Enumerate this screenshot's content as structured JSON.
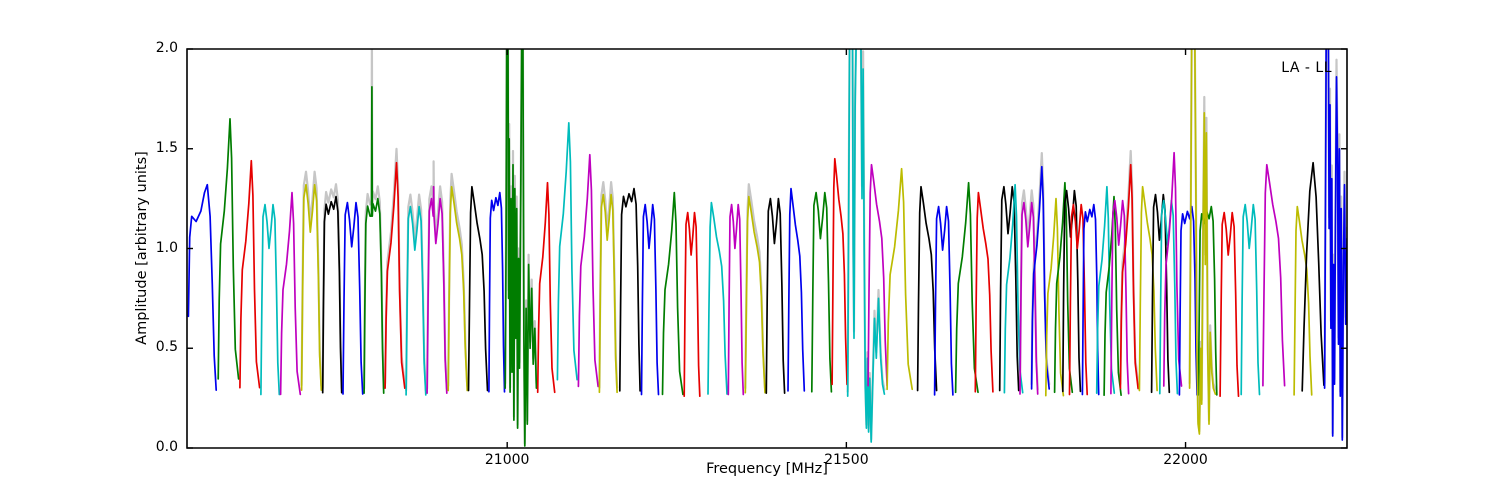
{
  "chart_data": {
    "type": "line",
    "title": "",
    "xlabel": "Frequency [MHz]",
    "ylabel": "Amplitude [arbitrary units]",
    "annotation": "LA - LL",
    "grid": false,
    "legend": "none",
    "xlim": [
      20528,
      22238
    ],
    "ylim": [
      0.0,
      2.0
    ],
    "xticks": [
      "21000",
      "21500",
      "22000"
    ],
    "xtick_values": [
      21000,
      21500,
      22000
    ],
    "yticks": [
      "0.0",
      "0.5",
      "1.0",
      "1.5",
      "2.0"
    ],
    "ytick_values": [
      0.0,
      0.5,
      1.0,
      1.5,
      2.0
    ],
    "colors": {
      "b": "#0000ee",
      "g": "#007d00",
      "r": "#e60000",
      "c": "#00bcbc",
      "m": "#bf00bf",
      "y": "#bcbc00",
      "k": "#000000",
      "gray": "#c6c6c6",
      "axis": "#000000",
      "background": "#ffffff"
    },
    "shapes": {
      "first": [
        [
          0,
          0.5
        ],
        [
          0.05,
          0.8
        ],
        [
          0.12,
          0.88
        ],
        [
          0.28,
          0.86
        ],
        [
          0.45,
          0.9
        ],
        [
          0.58,
          0.97
        ],
        [
          0.68,
          1.0
        ],
        [
          0.78,
          0.88
        ],
        [
          0.86,
          0.62
        ],
        [
          0.93,
          0.35
        ],
        [
          1,
          0.22
        ]
      ],
      "sharp": [
        [
          0,
          0.21
        ],
        [
          0.05,
          0.45
        ],
        [
          0.12,
          0.62
        ],
        [
          0.3,
          0.72
        ],
        [
          0.45,
          0.85
        ],
        [
          0.58,
          1.0
        ],
        [
          0.66,
          0.88
        ],
        [
          0.74,
          0.55
        ],
        [
          0.84,
          0.3
        ],
        [
          1,
          0.21
        ]
      ],
      "flat": [
        [
          0,
          0.22
        ],
        [
          0.04,
          0.55
        ],
        [
          0.09,
          0.9
        ],
        [
          0.18,
          0.97
        ],
        [
          0.3,
          0.93
        ],
        [
          0.45,
          0.98
        ],
        [
          0.58,
          0.95
        ],
        [
          0.7,
          1.0
        ],
        [
          0.8,
          0.94
        ],
        [
          0.88,
          0.7
        ],
        [
          0.94,
          0.4
        ],
        [
          1,
          0.22
        ]
      ],
      "double": [
        [
          0,
          0.22
        ],
        [
          0.05,
          0.6
        ],
        [
          0.11,
          0.95
        ],
        [
          0.22,
          1.0
        ],
        [
          0.33,
          0.93
        ],
        [
          0.44,
          0.82
        ],
        [
          0.55,
          0.9
        ],
        [
          0.66,
          1.0
        ],
        [
          0.76,
          0.94
        ],
        [
          0.85,
          0.65
        ],
        [
          0.92,
          0.35
        ],
        [
          1,
          0.22
        ]
      ],
      "rise": [
        [
          0,
          0.22
        ],
        [
          0.05,
          0.55
        ],
        [
          0.11,
          0.9
        ],
        [
          0.18,
          1.0
        ],
        [
          0.3,
          0.94
        ],
        [
          0.45,
          0.86
        ],
        [
          0.6,
          0.8
        ],
        [
          0.72,
          0.74
        ],
        [
          0.82,
          0.6
        ],
        [
          0.9,
          0.38
        ],
        [
          1,
          0.22
        ]
      ],
      "dome": [
        [
          0,
          0.2
        ],
        [
          0.08,
          0.42
        ],
        [
          0.2,
          0.68
        ],
        [
          0.35,
          0.9
        ],
        [
          0.5,
          1.0
        ],
        [
          0.64,
          0.88
        ],
        [
          0.76,
          0.65
        ],
        [
          0.87,
          0.4
        ],
        [
          1,
          0.22
        ]
      ]
    },
    "segments": [
      {
        "c": "b",
        "f0": 20530,
        "f1": 20571,
        "p": 1.32,
        "s": "first"
      },
      {
        "c": "g",
        "f0": 20574,
        "f1": 20604,
        "p": 1.65,
        "s": "sharp"
      },
      {
        "c": "r",
        "f0": 20606,
        "f1": 20635,
        "p": 1.44,
        "s": "sharp"
      },
      {
        "c": "c",
        "f0": 20637,
        "f1": 20664,
        "p": 1.22,
        "s": "double"
      },
      {
        "c": "m",
        "f0": 20666,
        "f1": 20695,
        "p": 1.28,
        "s": "sharp"
      },
      {
        "c": "y",
        "f0": 20697,
        "f1": 20726,
        "p": 1.32,
        "s": "double",
        "gray": true
      },
      {
        "c": "k",
        "f0": 20728,
        "f1": 20756,
        "p": 1.26,
        "s": "flat",
        "gray": true
      },
      {
        "c": "b",
        "f0": 20758,
        "f1": 20787,
        "p": 1.23,
        "s": "double"
      },
      {
        "c": "g",
        "f0": 20789,
        "f1": 20818,
        "p": 1.25,
        "s": "flat",
        "gray": true,
        "spike": {
          "t": 0.4,
          "top": 1.81,
          "gtop": 2.06
        }
      },
      {
        "c": "r",
        "f0": 20820,
        "f1": 20849,
        "p": 1.43,
        "s": "sharp",
        "gray": true
      },
      {
        "c": "c",
        "f0": 20851,
        "f1": 20880,
        "p": 1.21,
        "s": "double",
        "gray": true
      },
      {
        "c": "m",
        "f0": 20882,
        "f1": 20911,
        "p": 1.25,
        "s": "double",
        "gray": true,
        "spike": {
          "t": 0.33,
          "top": 1.31,
          "gtop": 1.37
        }
      },
      {
        "c": "y",
        "f0": 20913,
        "f1": 20941,
        "p": 1.31,
        "s": "rise",
        "gray": true
      },
      {
        "c": "k",
        "f0": 20943,
        "f1": 20971,
        "p": 1.31,
        "s": "rise"
      },
      {
        "c": "b",
        "f0": 20973,
        "f1": 20996,
        "p": 1.28,
        "s": "flat"
      },
      {
        "c": "g",
        "f0": 20997,
        "f1": 21043,
        "s": "pts",
        "gray": true,
        "pts": [
          [
            0,
            0.3
          ],
          [
            0.03,
            1.05
          ],
          [
            0.05,
            2.06
          ],
          [
            0.09,
            2.06
          ],
          [
            0.11,
            0.75
          ],
          [
            0.13,
            1.55
          ],
          [
            0.16,
            0.28
          ],
          [
            0.19,
            1.25
          ],
          [
            0.22,
            0.38
          ],
          [
            0.25,
            1.42
          ],
          [
            0.28,
            0.14
          ],
          [
            0.31,
            1.3
          ],
          [
            0.34,
            0.55
          ],
          [
            0.37,
            1.2
          ],
          [
            0.4,
            0.1
          ],
          [
            0.43,
            0.95
          ],
          [
            0.46,
            0.4
          ],
          [
            0.5,
            1.3
          ],
          [
            0.53,
            2.06
          ],
          [
            0.57,
            2.06
          ],
          [
            0.6,
            0.55
          ],
          [
            0.63,
            0.01
          ],
          [
            0.67,
            0.7
          ],
          [
            0.71,
            0.12
          ],
          [
            0.75,
            0.92
          ],
          [
            0.8,
            0.5
          ],
          [
            0.85,
            0.8
          ],
          [
            0.9,
            0.42
          ],
          [
            0.95,
            0.6
          ],
          [
            1,
            0.3
          ]
        ]
      },
      {
        "c": "r",
        "f0": 21045,
        "f1": 21070,
        "p": 1.33,
        "s": "sharp"
      },
      {
        "c": "c",
        "f0": 21074,
        "f1": 21103,
        "p": 1.63,
        "s": "sharp"
      },
      {
        "c": "m",
        "f0": 21105,
        "f1": 21134,
        "p": 1.47,
        "s": "sharp"
      },
      {
        "c": "y",
        "f0": 21136,
        "f1": 21162,
        "p": 1.27,
        "s": "double",
        "gray": true
      },
      {
        "c": "k",
        "f0": 21166,
        "f1": 21196,
        "p": 1.3,
        "s": "flat"
      },
      {
        "c": "b",
        "f0": 21198,
        "f1": 21223,
        "p": 1.22,
        "s": "double"
      },
      {
        "c": "g",
        "f0": 21229,
        "f1": 21259,
        "p": 1.28,
        "s": "sharp"
      },
      {
        "c": "r",
        "f0": 21261,
        "f1": 21284,
        "p": 1.18,
        "s": "double"
      },
      {
        "c": "c",
        "f0": 21296,
        "f1": 21324,
        "p": 1.23,
        "s": "rise"
      },
      {
        "c": "m",
        "f0": 21326,
        "f1": 21348,
        "p": 1.22,
        "s": "double"
      },
      {
        "c": "y",
        "f0": 21351,
        "f1": 21380,
        "p": 1.26,
        "s": "rise",
        "gray": true
      },
      {
        "c": "k",
        "f0": 21382,
        "f1": 21409,
        "p": 1.25,
        "s": "double"
      },
      {
        "c": "b",
        "f0": 21414,
        "f1": 21438,
        "p": 1.3,
        "s": "rise"
      },
      {
        "c": "g",
        "f0": 21449,
        "f1": 21478,
        "p": 1.28,
        "s": "double"
      },
      {
        "c": "r",
        "f0": 21479,
        "f1": 21501,
        "p": 1.45,
        "s": "rise"
      },
      {
        "c": "c",
        "f0": 21502,
        "f1": 21556,
        "s": "pts",
        "gray": true,
        "pts": [
          [
            0,
            0.26
          ],
          [
            0.03,
            1.3
          ],
          [
            0.05,
            2.06
          ],
          [
            0.13,
            2.06
          ],
          [
            0.15,
            1.0
          ],
          [
            0.17,
            0.55
          ],
          [
            0.2,
            1.7
          ],
          [
            0.23,
            2.06
          ],
          [
            0.36,
            2.06
          ],
          [
            0.39,
            1.25
          ],
          [
            0.42,
            1.9
          ],
          [
            0.45,
            1.0
          ],
          [
            0.48,
            0.3
          ],
          [
            0.51,
            0.1
          ],
          [
            0.54,
            0.45
          ],
          [
            0.57,
            0.08
          ],
          [
            0.6,
            0.35
          ],
          [
            0.64,
            0.03
          ],
          [
            0.68,
            0.3
          ],
          [
            0.73,
            0.65
          ],
          [
            0.78,
            0.45
          ],
          [
            0.84,
            0.75
          ],
          [
            0.9,
            0.45
          ],
          [
            0.95,
            0.32
          ],
          [
            1,
            0.27
          ]
        ]
      },
      {
        "c": "m",
        "f0": 21532,
        "f1": 21560,
        "p": 1.42,
        "s": "rise"
      },
      {
        "c": "y",
        "f0": 21560,
        "f1": 21597,
        "p": 1.4,
        "s": "sharp"
      },
      {
        "c": "k",
        "f0": 21605,
        "f1": 21633,
        "p": 1.31,
        "s": "rise"
      },
      {
        "c": "b",
        "f0": 21630,
        "f1": 21657,
        "p": 1.21,
        "s": "double"
      },
      {
        "c": "g",
        "f0": 21661,
        "f1": 21694,
        "p": 1.33,
        "s": "sharp"
      },
      {
        "c": "r",
        "f0": 21690,
        "f1": 21716,
        "p": 1.28,
        "s": "rise"
      },
      {
        "c": "k",
        "f0": 21726,
        "f1": 21754,
        "p": 1.31,
        "s": "double"
      },
      {
        "c": "c",
        "f0": 21733,
        "f1": 21760,
        "p": 1.32,
        "s": "sharp"
      },
      {
        "c": "m",
        "f0": 21756,
        "f1": 21782,
        "p": 1.23,
        "s": "double",
        "gray": true
      },
      {
        "c": "b",
        "f0": 21773,
        "f1": 21799,
        "p": 1.41,
        "s": "sharp",
        "gray": true
      },
      {
        "c": "y",
        "f0": 21794,
        "f1": 21820,
        "p": 1.25,
        "s": "sharp"
      },
      {
        "c": "g",
        "f0": 21807,
        "f1": 21833,
        "p": 1.33,
        "s": "sharp"
      },
      {
        "c": "k",
        "f0": 21819,
        "f1": 21845,
        "p": 1.29,
        "s": "double"
      },
      {
        "c": "r",
        "f0": 21829,
        "f1": 21855,
        "p": 1.22,
        "s": "double"
      },
      {
        "c": "b",
        "f0": 21848,
        "f1": 21872,
        "p": 1.22,
        "s": "flat"
      },
      {
        "c": "c",
        "f0": 21869,
        "f1": 21895,
        "p": 1.31,
        "s": "sharp"
      },
      {
        "c": "g",
        "f0": 21880,
        "f1": 21905,
        "p": 1.26,
        "s": "sharp"
      },
      {
        "c": "m",
        "f0": 21890,
        "f1": 21916,
        "p": 1.24,
        "s": "double"
      },
      {
        "c": "r",
        "f0": 21904,
        "f1": 21930,
        "p": 1.42,
        "s": "sharp",
        "gray": true
      },
      {
        "c": "y",
        "f0": 21932,
        "f1": 21958,
        "p": 1.31,
        "s": "rise"
      },
      {
        "c": "k",
        "f0": 21950,
        "f1": 21976,
        "p": 1.27,
        "s": "double"
      },
      {
        "c": "c",
        "f0": 21962,
        "f1": 21988,
        "p": 1.24,
        "s": "double"
      },
      {
        "c": "m",
        "f0": 21968,
        "f1": 21994,
        "p": 1.48,
        "s": "sharp"
      },
      {
        "c": "b",
        "f0": 21991,
        "f1": 22017,
        "p": 1.21,
        "s": "flat"
      },
      {
        "c": "g",
        "f0": 22019,
        "f1": 22046,
        "p": 1.21,
        "s": "flat"
      },
      {
        "c": "y",
        "f0": 22006,
        "f1": 22044,
        "s": "pts",
        "gray": true,
        "pts": [
          [
            0,
            0.3
          ],
          [
            0.04,
            1.1
          ],
          [
            0.08,
            2.06
          ],
          [
            0.2,
            2.06
          ],
          [
            0.24,
            1.35
          ],
          [
            0.28,
            0.55
          ],
          [
            0.33,
            0.12
          ],
          [
            0.38,
            0.07
          ],
          [
            0.43,
            0.5
          ],
          [
            0.47,
            0.22
          ],
          [
            0.52,
            1.05
          ],
          [
            0.57,
            1.68
          ],
          [
            0.61,
            0.92
          ],
          [
            0.65,
            1.58
          ],
          [
            0.7,
            0.5
          ],
          [
            0.75,
            0.12
          ],
          [
            0.8,
            0.58
          ],
          [
            0.86,
            0.38
          ],
          [
            0.92,
            0.3
          ],
          [
            1,
            0.27
          ]
        ]
      },
      {
        "c": "r",
        "f0": 22051,
        "f1": 22078,
        "p": 1.18,
        "s": "double"
      },
      {
        "c": "c",
        "f0": 22082,
        "f1": 22109,
        "p": 1.22,
        "s": "double"
      },
      {
        "c": "m",
        "f0": 22114,
        "f1": 22146,
        "p": 1.42,
        "s": "rise"
      },
      {
        "c": "y",
        "f0": 22160,
        "f1": 22186,
        "p": 1.21,
        "s": "rise"
      },
      {
        "c": "k",
        "f0": 22172,
        "f1": 22204,
        "p": 1.43,
        "s": "dome"
      },
      {
        "c": "b",
        "f0": 22205,
        "f1": 22238,
        "s": "pts",
        "gray": true,
        "pts": [
          [
            0,
            0.3
          ],
          [
            0.04,
            1.25
          ],
          [
            0.07,
            2.06
          ],
          [
            0.17,
            2.06
          ],
          [
            0.2,
            1.1
          ],
          [
            0.24,
            1.72
          ],
          [
            0.28,
            0.6
          ],
          [
            0.32,
            1.35
          ],
          [
            0.36,
            0.06
          ],
          [
            0.4,
            0.92
          ],
          [
            0.44,
            0.32
          ],
          [
            0.48,
            1.1
          ],
          [
            0.53,
            1.86
          ],
          [
            0.58,
            1.42
          ],
          [
            0.62,
            0.52
          ],
          [
            0.66,
            1.5
          ],
          [
            0.7,
            0.26
          ],
          [
            0.74,
            1.2
          ],
          [
            0.79,
            0.04
          ],
          [
            0.84,
            0.9
          ],
          [
            0.89,
            1.32
          ],
          [
            0.94,
            0.62
          ],
          [
            1,
            1.05
          ]
        ]
      }
    ]
  }
}
